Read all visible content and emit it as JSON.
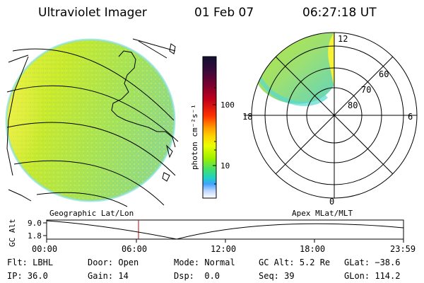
{
  "header": {
    "instrument": "Ultraviolet Imager",
    "date": "01 Feb 07",
    "time": "06:27:18 UT"
  },
  "left_panel": {
    "caption": "Geographic Lat/Lon",
    "image": "earth-disk-uv-image"
  },
  "colorbar": {
    "unit": "photon cm⁻²s⁻¹",
    "ticks": [
      "100",
      "10"
    ],
    "colors": [
      "#101030",
      "#3a0a3a",
      "#7a0030",
      "#c0001a",
      "#ff3300",
      "#ff9900",
      "#ffd000",
      "#eaff00",
      "#9cf000",
      "#40e070",
      "#20d0c8",
      "#40a0ff",
      "#c0d8ff",
      "#ffffff"
    ]
  },
  "right_panel": {
    "caption": "Apex MLat/MLT",
    "mlt_labels": [
      "12",
      "18",
      "6",
      "0"
    ],
    "mlat_labels": [
      "60",
      "70",
      "80"
    ]
  },
  "altitude_plot": {
    "ylabel": "GC Alt",
    "yticks": [
      "9.0",
      "1.8"
    ],
    "xticks": [
      "00:00",
      "06:00",
      "12:00",
      "18:00",
      "23:59"
    ],
    "current_time_marker": "06:27"
  },
  "status": {
    "flt": {
      "label": "Flt:",
      "value": "LBHL"
    },
    "ip": {
      "label": "IP:",
      "value": "36.0"
    },
    "door": {
      "label": "Door:",
      "value": "Open"
    },
    "gain": {
      "label": "Gain:",
      "value": "14"
    },
    "mode": {
      "label": "Mode:",
      "value": "Normal"
    },
    "dsp": {
      "label": "Dsp:",
      "value": "0.0"
    },
    "gc_alt": {
      "label": "GC Alt:",
      "value": "5.2 Re"
    },
    "seq": {
      "label": "Seq:",
      "value": "39"
    },
    "glat": {
      "label": "GLat:",
      "value": "−38.6"
    },
    "glon": {
      "label": "GLon:",
      "value": "114.2"
    }
  }
}
